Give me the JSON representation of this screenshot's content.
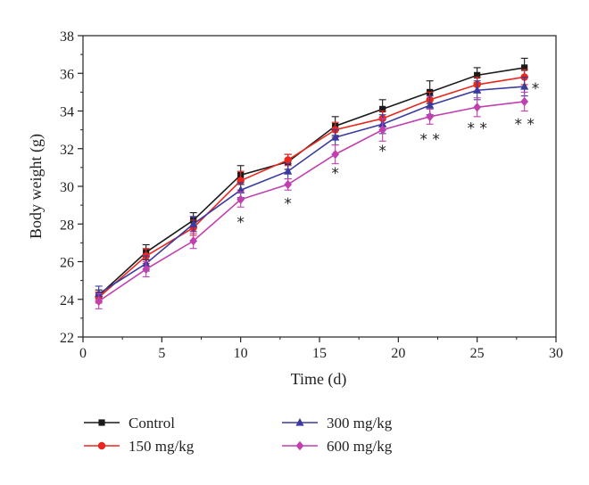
{
  "chart_data": {
    "type": "line",
    "xlabel": "Time (d)",
    "ylabel": "Body weight (g)",
    "xlim": [
      0,
      30
    ],
    "ylim": [
      22,
      38
    ],
    "xticks": [
      0,
      5,
      10,
      15,
      20,
      25,
      30
    ],
    "yticks": [
      22,
      24,
      26,
      28,
      30,
      32,
      34,
      36,
      38
    ],
    "x": [
      1,
      4,
      7,
      10,
      13,
      16,
      19,
      22,
      25,
      28
    ],
    "grid": false,
    "legend_position": "bottom",
    "series": [
      {
        "name": "Control",
        "color": "#1a1a1a",
        "marker": "square",
        "values": [
          24.2,
          26.5,
          28.2,
          30.6,
          31.3,
          33.2,
          34.1,
          35.0,
          35.9,
          36.3
        ],
        "errors": [
          0.3,
          0.4,
          0.4,
          0.5,
          0.4,
          0.5,
          0.5,
          0.6,
          0.4,
          0.5
        ]
      },
      {
        "name": "150 mg/kg",
        "color": "#e8281e",
        "marker": "circle",
        "values": [
          24.1,
          26.3,
          27.8,
          30.3,
          31.4,
          33.0,
          33.6,
          34.6,
          35.4,
          35.8
        ],
        "errors": [
          0.3,
          0.4,
          0.4,
          0.5,
          0.3,
          0.4,
          0.4,
          0.4,
          0.4,
          0.4
        ]
      },
      {
        "name": "300 mg/kg",
        "color": "#3a3aa0",
        "marker": "triangle",
        "values": [
          24.3,
          25.9,
          28.0,
          29.8,
          30.8,
          32.6,
          33.3,
          34.3,
          35.1,
          35.3
        ],
        "errors": [
          0.4,
          0.4,
          0.4,
          0.4,
          0.4,
          0.4,
          0.5,
          0.5,
          0.5,
          0.5
        ]
      },
      {
        "name": "600 mg/kg",
        "color": "#c040b0",
        "marker": "diamond",
        "values": [
          23.9,
          25.6,
          27.1,
          29.3,
          30.1,
          31.7,
          33.0,
          33.7,
          34.2,
          34.5
        ],
        "errors": [
          0.4,
          0.4,
          0.4,
          0.4,
          0.3,
          0.5,
          0.6,
          0.4,
          0.5,
          0.5
        ]
      }
    ],
    "annotations": [
      {
        "x": 10,
        "y": 28.2,
        "text": "*"
      },
      {
        "x": 13,
        "y": 29.2,
        "text": "*"
      },
      {
        "x": 16,
        "y": 30.8,
        "text": "*"
      },
      {
        "x": 19,
        "y": 32.0,
        "text": "*"
      },
      {
        "x": 22,
        "y": 32.6,
        "text": "* *"
      },
      {
        "x": 25,
        "y": 33.2,
        "text": "* *"
      },
      {
        "x": 28,
        "y": 33.4,
        "text": "* *"
      },
      {
        "x": 28.7,
        "y": 35.3,
        "text": "*"
      }
    ]
  }
}
